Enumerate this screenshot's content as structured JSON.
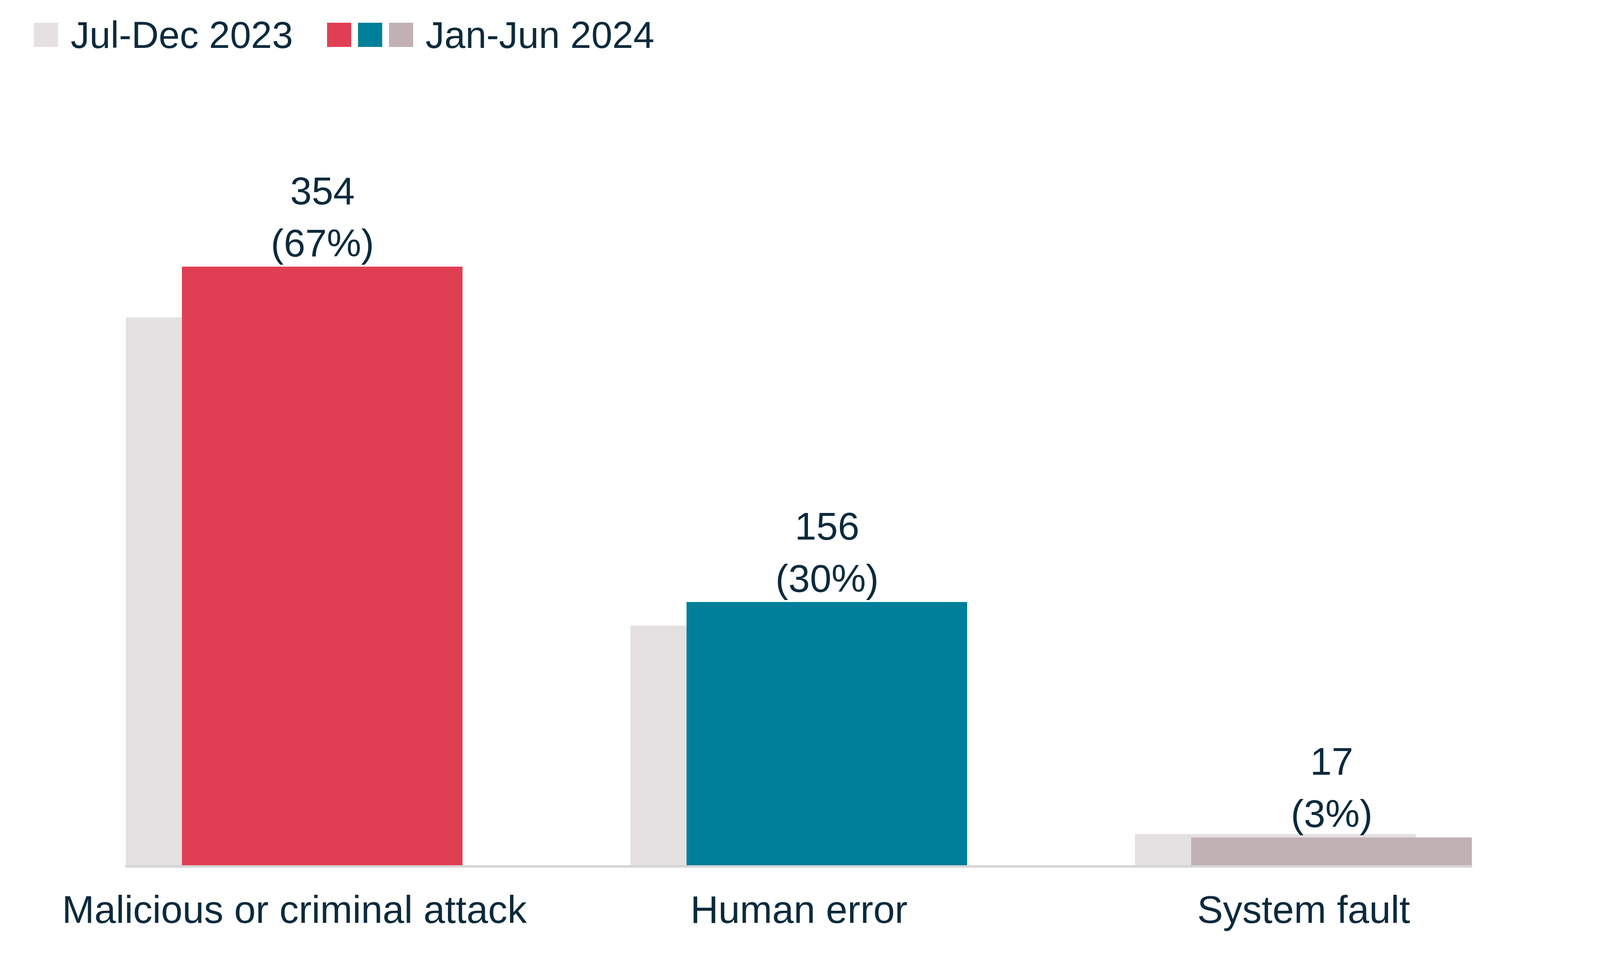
{
  "chart_data": {
    "type": "bar",
    "categories": [
      "Malicious or criminal attack",
      "Human error",
      "System fault"
    ],
    "series": [
      {
        "name": "Jul-Dec 2023",
        "color": "#e5e0e2",
        "values": [
          324,
          142,
          19
        ],
        "data_labels": false
      },
      {
        "name": "Jan-Jun 2024",
        "colors": [
          "#e03f53",
          "#007f9a",
          "#c1b0b4"
        ],
        "values": [
          354,
          156,
          17
        ],
        "value_labels": [
          "354\n(67%)",
          "156\n(30%)",
          "17\n(3%)"
        ],
        "data_labels": true
      }
    ],
    "ylim": [
      0,
      440
    ],
    "grid": false,
    "legend": "top-left",
    "tick_labels": "x"
  }
}
